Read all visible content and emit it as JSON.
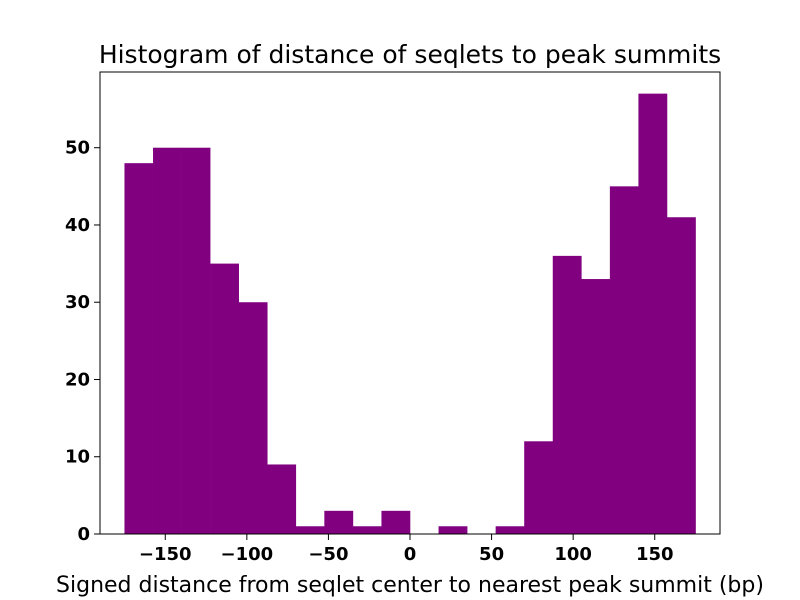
{
  "chart_data": {
    "type": "bar",
    "subtype": "histogram",
    "title": "Histogram of distance of seqlets to peak summits",
    "xlabel": "Signed distance from seqlet center to nearest peak summit (bp)",
    "ylabel": "",
    "bar_color": "#800080",
    "xlim": [
      -190,
      190
    ],
    "ylim": [
      0,
      59.8
    ],
    "bin_edges": [
      -175,
      -157.5,
      -140,
      -122.5,
      -105,
      -87.5,
      -70,
      -52.5,
      -35,
      -17.5,
      0,
      17.5,
      35,
      52.5,
      70,
      87.5,
      105,
      122.5,
      140,
      157.5,
      175
    ],
    "values": [
      48,
      50,
      50,
      35,
      30,
      9,
      1,
      3,
      1,
      3,
      0,
      1,
      0,
      1,
      12,
      36,
      33,
      45,
      57,
      41
    ],
    "xticks": [
      -150,
      -100,
      -50,
      0,
      50,
      100,
      150
    ],
    "xtick_labels": [
      "−150",
      "−100",
      "−50",
      "0",
      "50",
      "100",
      "150"
    ],
    "yticks": [
      0,
      10,
      20,
      30,
      40,
      50
    ],
    "ytick_labels": [
      "0",
      "10",
      "20",
      "30",
      "40",
      "50"
    ],
    "grid": false,
    "legend": "none"
  }
}
